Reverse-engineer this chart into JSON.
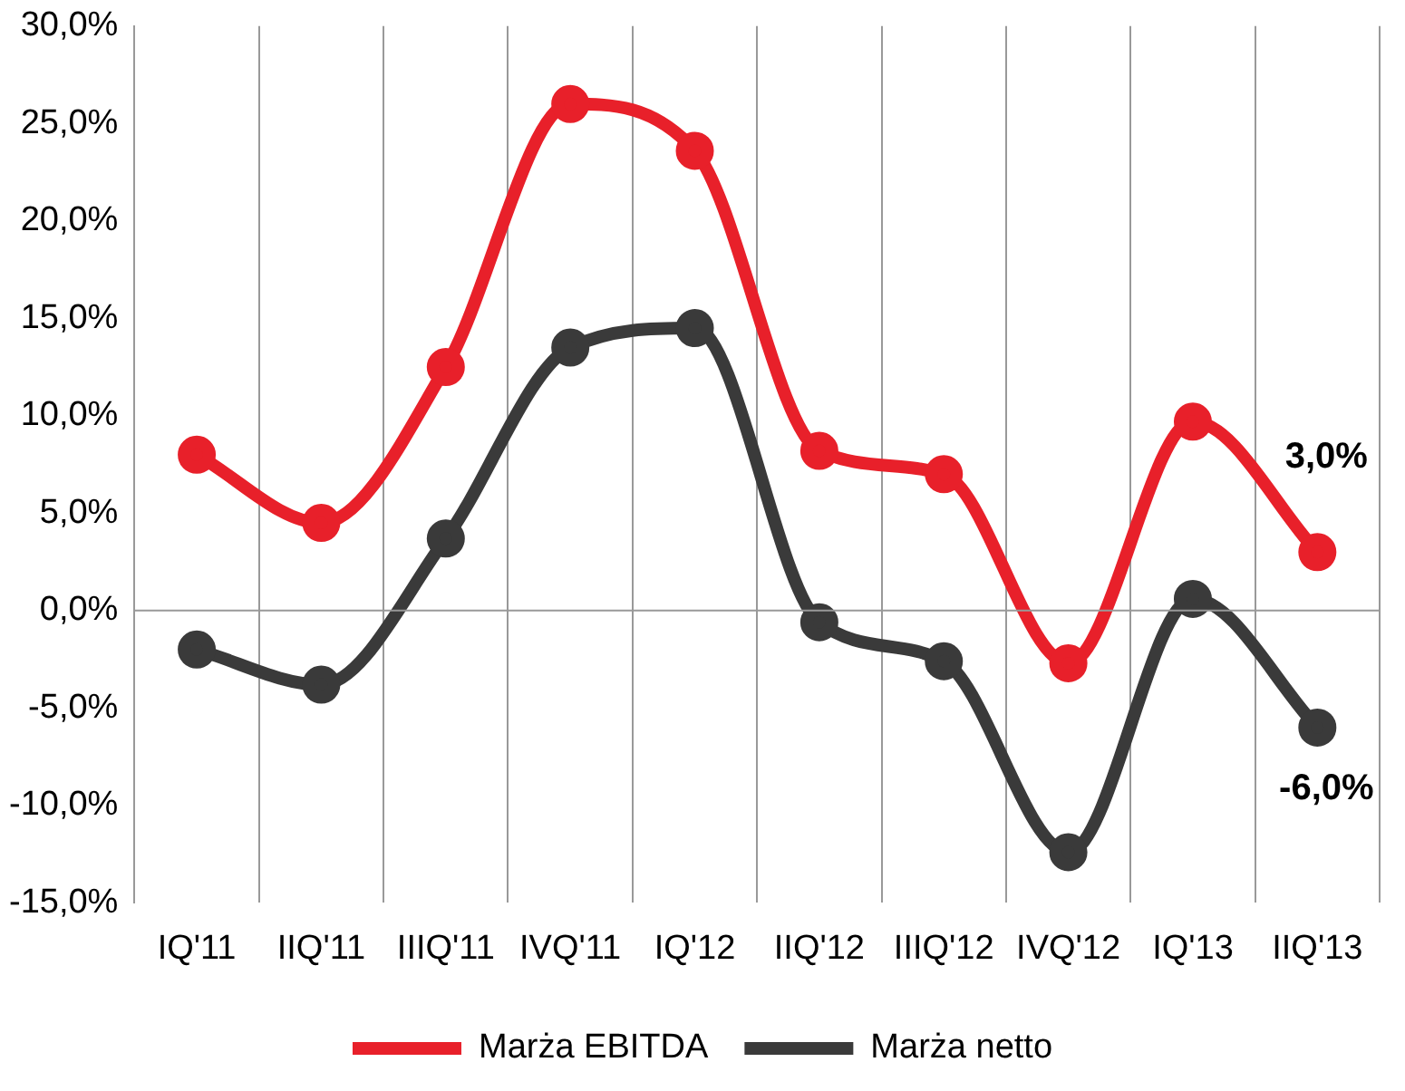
{
  "chart_data": {
    "type": "line",
    "categories": [
      "IQ'11",
      "IIQ'11",
      "IIIQ'11",
      "IVQ'11",
      "IQ'12",
      "IIQ'12",
      "IIIQ'12",
      "IVQ'12",
      "IQ'13",
      "IIQ'13"
    ],
    "series": [
      {
        "name": "Marża EBITDA",
        "color": "#e8202a",
        "values": [
          8.0,
          4.5,
          12.5,
          26.0,
          23.6,
          8.2,
          7.0,
          -2.7,
          9.7,
          3.0
        ],
        "value_labels": [
          null,
          null,
          null,
          null,
          null,
          null,
          null,
          null,
          null,
          "3,0%"
        ]
      },
      {
        "name": "Marża netto",
        "color": "#3a3a3a",
        "values": [
          -2.0,
          -3.8,
          3.7,
          13.5,
          14.5,
          -0.6,
          -2.6,
          -12.4,
          0.6,
          -6.0
        ],
        "value_labels": [
          null,
          null,
          null,
          null,
          null,
          null,
          null,
          null,
          null,
          "-6,0%"
        ]
      }
    ],
    "ylim": [
      -15,
      30
    ],
    "yticks": [
      {
        "value": -15,
        "label": "-15,0%"
      },
      {
        "value": -10,
        "label": "-10,0%"
      },
      {
        "value": -5,
        "label": "-5,0%"
      },
      {
        "value": 0,
        "label": "0,0%"
      },
      {
        "value": 5,
        "label": "5,0%"
      },
      {
        "value": 10,
        "label": "10,0%"
      },
      {
        "value": 15,
        "label": "15,0%"
      },
      {
        "value": 20,
        "label": "20,0%"
      },
      {
        "value": 25,
        "label": "25,0%"
      },
      {
        "value": 30,
        "label": "30,0%"
      }
    ],
    "ref_lines": [
      {
        "axis": "y",
        "value": 0,
        "color": "#999999"
      }
    ],
    "grid": "x",
    "legend": "bottom",
    "marker": "circle",
    "line_style": "solid"
  }
}
